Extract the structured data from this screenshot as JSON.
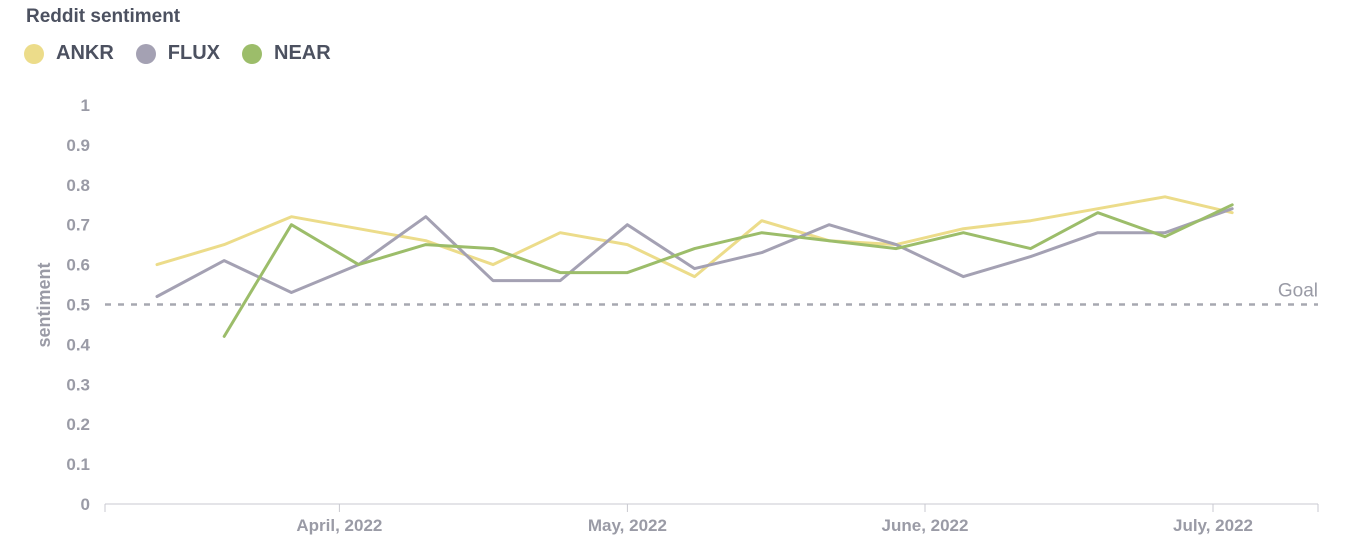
{
  "chart_data": {
    "type": "line",
    "title": "Reddit sentiment",
    "ylabel": "sentiment",
    "xlabel": "",
    "ylim": [
      0,
      1
    ],
    "yticks": [
      "1",
      "0.9",
      "0.8",
      "0.7",
      "0.6",
      "0.5",
      "0.4",
      "0.3",
      "0.2",
      "0.1",
      "0"
    ],
    "x_tick_labels": [
      "April, 2022",
      "May, 2022",
      "June, 2022",
      "July, 2022"
    ],
    "x": [
      "2022-03-13",
      "2022-03-20",
      "2022-03-27",
      "2022-04-03",
      "2022-04-10",
      "2022-04-17",
      "2022-04-24",
      "2022-05-01",
      "2022-05-08",
      "2022-05-15",
      "2022-05-22",
      "2022-05-29",
      "2022-06-05",
      "2022-06-12",
      "2022-06-19",
      "2022-06-26",
      "2022-07-03",
      "2022-07-10"
    ],
    "series": [
      {
        "name": "ANKR",
        "color": "#ecdc8a",
        "values": [
          0.6,
          0.65,
          0.72,
          0.69,
          0.66,
          0.6,
          0.68,
          0.65,
          0.57,
          0.71,
          0.66,
          0.65,
          0.69,
          0.71,
          0.74,
          0.77,
          0.73,
          null
        ]
      },
      {
        "name": "FLUX",
        "color": "#a4a1b3",
        "values": [
          0.52,
          0.61,
          0.53,
          0.6,
          0.72,
          0.56,
          0.56,
          0.7,
          0.59,
          0.63,
          0.7,
          0.65,
          0.57,
          0.62,
          0.68,
          0.68,
          0.74,
          null
        ]
      },
      {
        "name": "NEAR",
        "color": "#9cbd6a",
        "values": [
          null,
          0.42,
          0.7,
          0.6,
          0.65,
          0.64,
          0.58,
          0.58,
          0.64,
          0.68,
          0.66,
          0.64,
          0.68,
          0.64,
          0.73,
          0.67,
          0.75,
          null
        ]
      }
    ],
    "goal": {
      "label": "Goal",
      "value": 0.5
    },
    "grid": false,
    "legend_position": "top-left"
  }
}
